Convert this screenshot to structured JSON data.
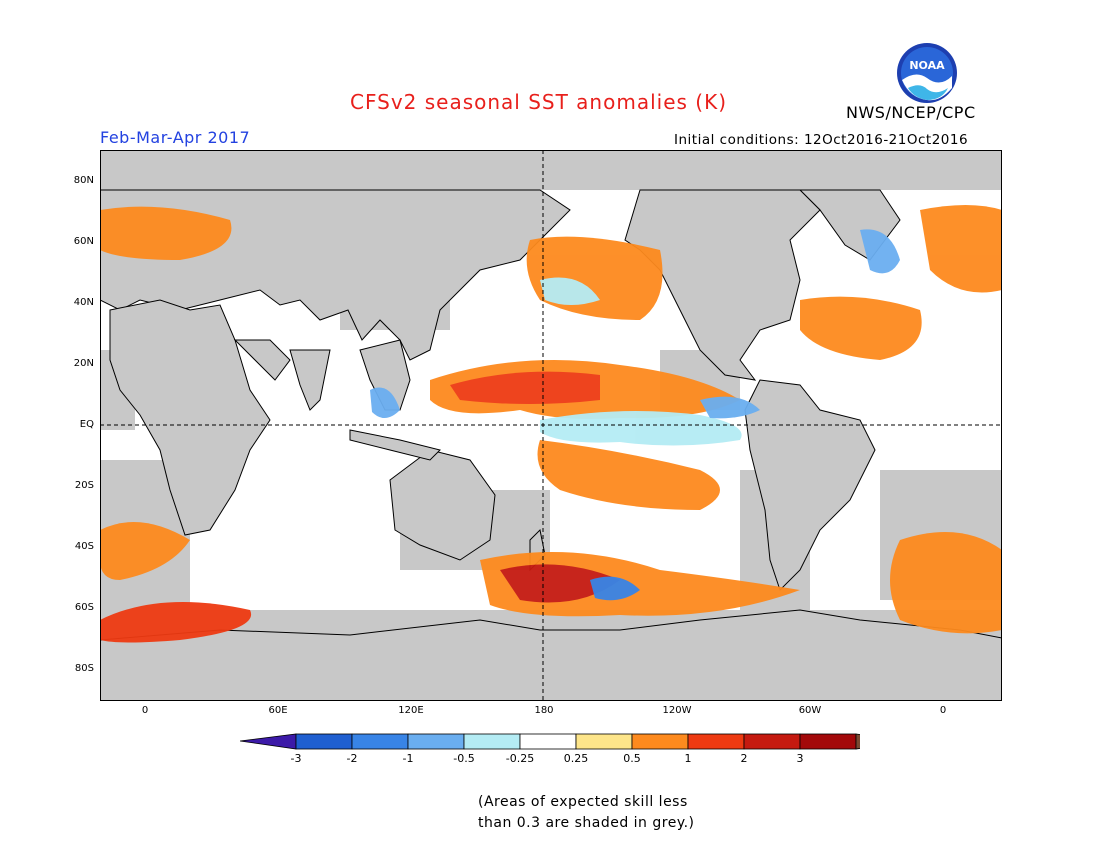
{
  "header": {
    "title": "CFSv2 seasonal SST anomalies (K)",
    "agency": "NWS/NCEP/CPC",
    "logo_text": "NOAA",
    "season": "Feb-Mar-Apr 2017",
    "initial_conditions": "Initial conditions: 12Oct2016-21Oct2016"
  },
  "colors": {
    "title": "#e8201c",
    "season": "#2342e0",
    "land": "#c8c8c8",
    "ocean": "#ffffff"
  },
  "map": {
    "lat_labels": [
      "80N",
      "60N",
      "40N",
      "20N",
      "EQ",
      "20S",
      "40S",
      "60S",
      "80S"
    ],
    "lon_labels": [
      "0",
      "60E",
      "120E",
      "180",
      "120W",
      "60W",
      "0"
    ]
  },
  "colorbar": {
    "tick_labels": [
      "-3",
      "-2",
      "-1",
      "-0.5",
      "-0.25",
      "0.25",
      "0.5",
      "1",
      "2",
      "3"
    ],
    "colors": [
      "#3c1aa8",
      "#1f5fd0",
      "#3884e6",
      "#6aaef0",
      "#b4ecf4",
      "#ffffff",
      "#fde58a",
      "#fd8a1e",
      "#ee3a12",
      "#c51a10",
      "#a3090a",
      "#7a4a32"
    ]
  },
  "note": {
    "line1": "(Areas of expected skill less",
    "line2": "than 0.3 are shaded in grey.)"
  }
}
